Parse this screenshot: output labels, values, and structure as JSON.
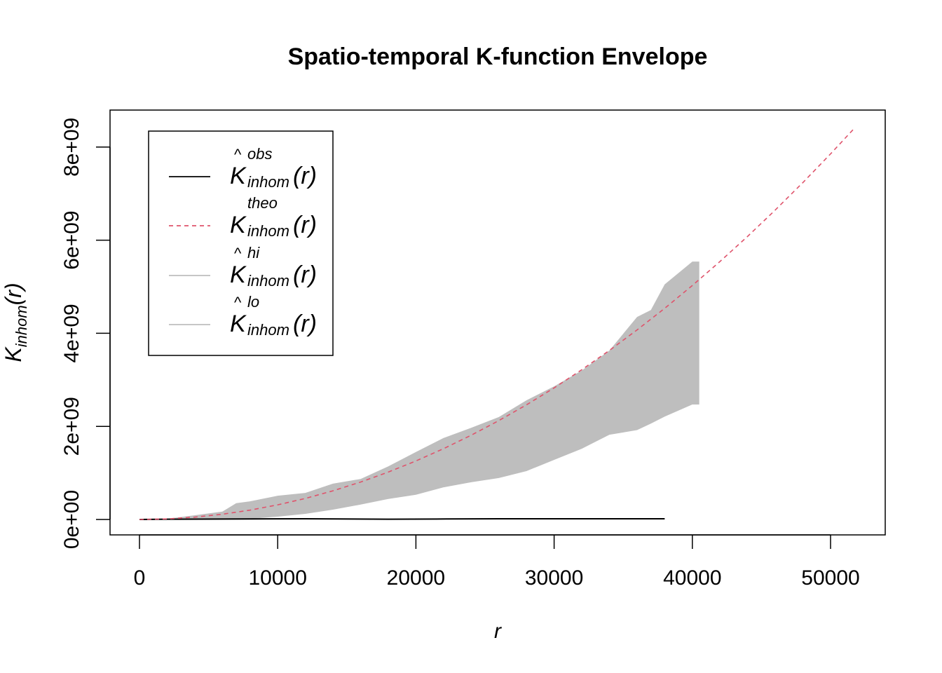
{
  "chart_data": {
    "type": "area",
    "title": "Spatio-temporal K-function Envelope",
    "xlabel": "r",
    "ylabel": {
      "base": "K",
      "sub": "inhom",
      "arg": "(r)"
    },
    "xlim": [
      0,
      52000
    ],
    "ylim": [
      0,
      8800000000.0
    ],
    "y_unit_scale": 1000000000.0,
    "xticks": [
      0,
      10000,
      20000,
      30000,
      40000,
      50000
    ],
    "xtick_labels": [
      "0",
      "10000",
      "20000",
      "30000",
      "40000",
      "50000"
    ],
    "yticks": [
      0,
      2,
      4,
      6,
      8
    ],
    "ytick_labels": [
      "0e+00",
      "2e+09",
      "4e+09",
      "6e+09",
      "8e+09"
    ],
    "grid": false,
    "legend_position": "top-left",
    "legend": [
      {
        "sup": "obs",
        "sub": "inhom",
        "arg": "(r)",
        "hat": true,
        "color": "#000000",
        "dash": false
      },
      {
        "sup": "theo",
        "sub": "inhom",
        "arg": "(r)",
        "hat": false,
        "color": "#DF536B",
        "dash": true
      },
      {
        "sup": "hi",
        "sub": "inhom",
        "arg": "(r)",
        "hat": true,
        "color": "#BEBEBE",
        "dash": false
      },
      {
        "sup": "lo",
        "sub": "inhom",
        "arg": "(r)",
        "hat": true,
        "color": "#BEBEBE",
        "dash": false
      }
    ],
    "series": [
      {
        "name": "obs",
        "x": [
          0,
          2000,
          6000,
          12000,
          18000,
          21500,
          26000,
          32000,
          38000
        ],
        "y": [
          0,
          0.005,
          0.01,
          0.015,
          0.005,
          0.01,
          0.015,
          0.015,
          0.015
        ]
      },
      {
        "name": "theo",
        "x": [
          0,
          2000,
          4000,
          6000,
          8000,
          10000,
          12000,
          14000,
          16000,
          18000,
          20000,
          22000,
          24000,
          26000,
          28000,
          30000,
          32000,
          34000,
          36000,
          38000,
          40000,
          42000,
          44000,
          46000,
          48000,
          50000,
          51700
        ],
        "y": [
          0,
          0.0126,
          0.0503,
          0.113,
          0.201,
          0.314,
          0.452,
          0.616,
          0.804,
          1.018,
          1.257,
          1.521,
          1.81,
          2.124,
          2.463,
          2.827,
          3.217,
          3.632,
          4.072,
          4.536,
          5.027,
          5.542,
          6.082,
          6.648,
          7.238,
          7.854,
          8.397
        ]
      },
      {
        "name": "hi",
        "x": [
          0,
          2000,
          4000,
          6000,
          7000,
          8000,
          10000,
          12000,
          14000,
          16000,
          18000,
          20000,
          22000,
          24000,
          26000,
          28000,
          30000,
          32000,
          34000,
          36000,
          37000,
          38000,
          40000,
          40500
        ],
        "y": [
          0,
          0.015,
          0.09,
          0.17,
          0.35,
          0.39,
          0.51,
          0.57,
          0.77,
          0.87,
          1.14,
          1.45,
          1.75,
          1.97,
          2.2,
          2.56,
          2.86,
          3.2,
          3.63,
          4.35,
          4.5,
          5.05,
          5.54,
          5.54
        ]
      },
      {
        "name": "lo",
        "x": [
          0,
          2000,
          4000,
          6000,
          7000,
          8000,
          10000,
          12000,
          14000,
          16000,
          18000,
          20000,
          22000,
          24000,
          26000,
          28000,
          30000,
          32000,
          34000,
          36000,
          37000,
          38000,
          40000,
          40500
        ],
        "y": [
          0,
          0,
          0,
          0.005,
          0.01,
          0.015,
          0.06,
          0.12,
          0.21,
          0.32,
          0.44,
          0.53,
          0.69,
          0.8,
          0.89,
          1.04,
          1.28,
          1.52,
          1.82,
          1.92,
          2.06,
          2.21,
          2.47,
          2.47
        ]
      }
    ]
  }
}
